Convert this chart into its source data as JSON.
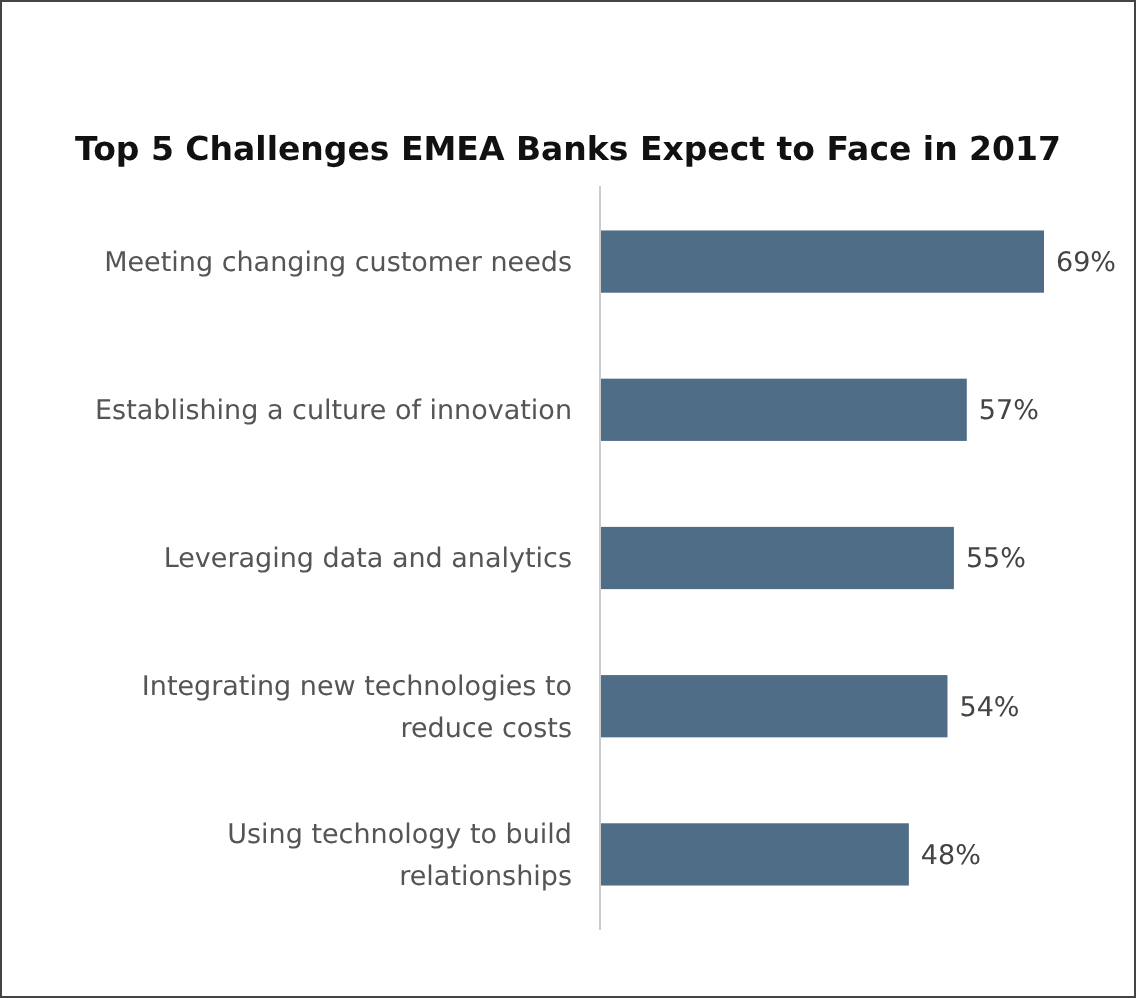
{
  "chart_data": {
    "type": "bar",
    "orientation": "horizontal",
    "title": "Top 5 Challenges EMEA Banks Expect to Face in 2017",
    "categories": [
      "Meeting changing customer needs",
      "Establishing a culture of innovation",
      "Leveraging data and analytics",
      "Integrating new technologies to reduce costs",
      "Using technology to build relationships"
    ],
    "values": [
      69,
      57,
      55,
      54,
      48
    ],
    "value_labels": [
      "69%",
      "57%",
      "55%",
      "54%",
      "48%"
    ],
    "color": "#4f6d87"
  }
}
